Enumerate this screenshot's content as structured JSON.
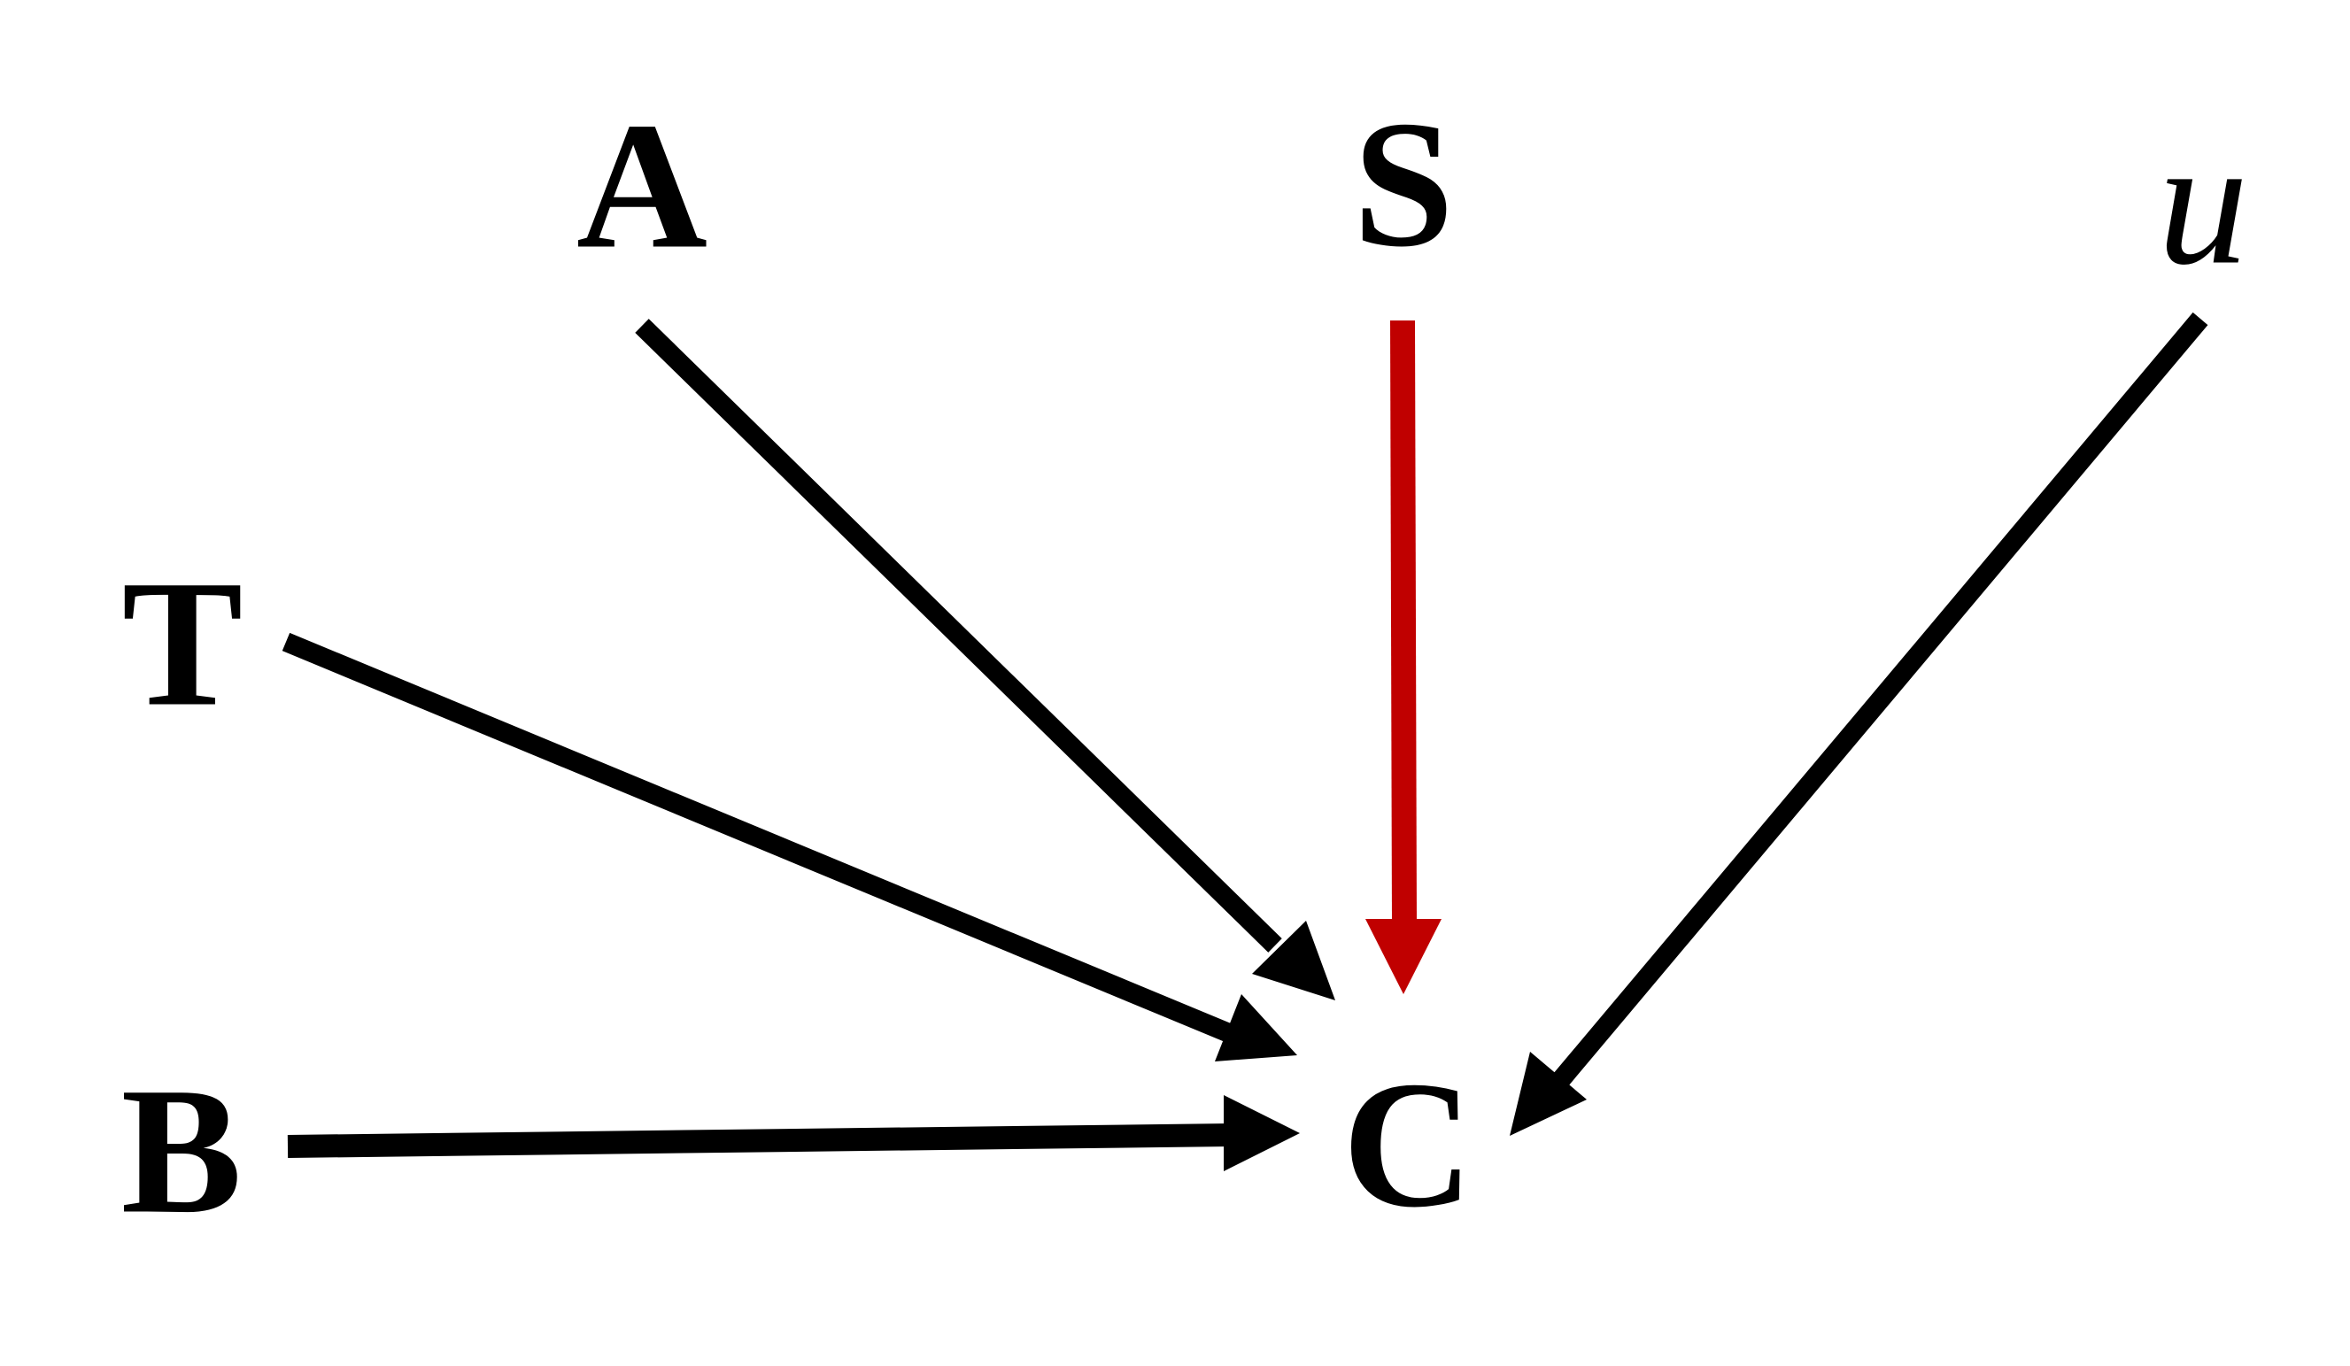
{
  "nodes": {
    "A": "A",
    "S": "S",
    "u": "u",
    "T": "T",
    "B": "B",
    "C": "C"
  },
  "edges": [
    {
      "from": "A",
      "to": "C",
      "color": "#000000"
    },
    {
      "from": "S",
      "to": "C",
      "color": "#c00000"
    },
    {
      "from": "u",
      "to": "C",
      "color": "#000000"
    },
    {
      "from": "T",
      "to": "C",
      "color": "#000000"
    },
    {
      "from": "B",
      "to": "C",
      "color": "#000000"
    }
  ]
}
